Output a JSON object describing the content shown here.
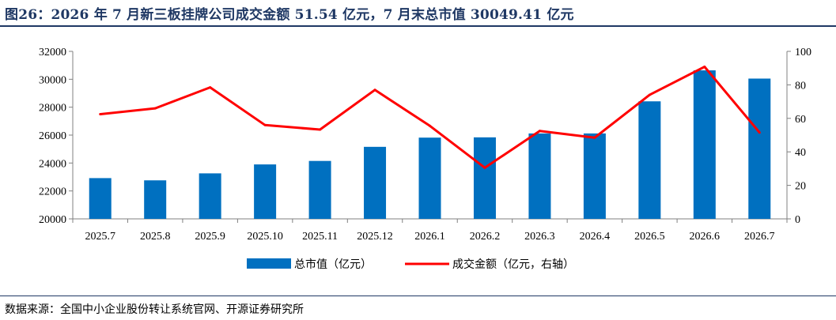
{
  "title": "图26：2026 年 7 月新三板挂牌公司成交金额 51.54 亿元，7 月末总市值 30049.41 亿元",
  "source": "数据来源：全国中小企业股份转让系统官网、开源证券研究所",
  "colors": {
    "bar": "#0070c0",
    "line": "#ff0000",
    "title": "#1f3864",
    "axis": "#808080"
  },
  "chart_data": {
    "type": "bar",
    "categories": [
      "2025.7",
      "2025.8",
      "2025.9",
      "2025.10",
      "2025.11",
      "2025.12",
      "2026.1",
      "2026.2",
      "2026.3",
      "2026.4",
      "2026.5",
      "2026.6",
      "2026.7"
    ],
    "series": [
      {
        "name": "总市值（亿元）",
        "type": "bar",
        "axis": "left",
        "values": [
          22920,
          22760,
          23260,
          23900,
          24150,
          25160,
          25820,
          25840,
          26120,
          26120,
          28420,
          30640,
          30049.41
        ]
      },
      {
        "name": "成交金额（亿元，右轴）",
        "type": "line",
        "axis": "right",
        "values": [
          62.5,
          66,
          78.5,
          56,
          53.3,
          77,
          55.5,
          30.5,
          52.5,
          48.5,
          74,
          90.8,
          51.54
        ]
      }
    ],
    "yleft": {
      "ylim": [
        20000,
        32000
      ],
      "ticks": [
        20000,
        22000,
        24000,
        26000,
        28000,
        30000,
        32000
      ]
    },
    "yright": {
      "ylim": [
        0,
        100
      ],
      "ticks": [
        0,
        20,
        40,
        60,
        80,
        100
      ]
    },
    "legend": "bottom",
    "grid": false
  }
}
